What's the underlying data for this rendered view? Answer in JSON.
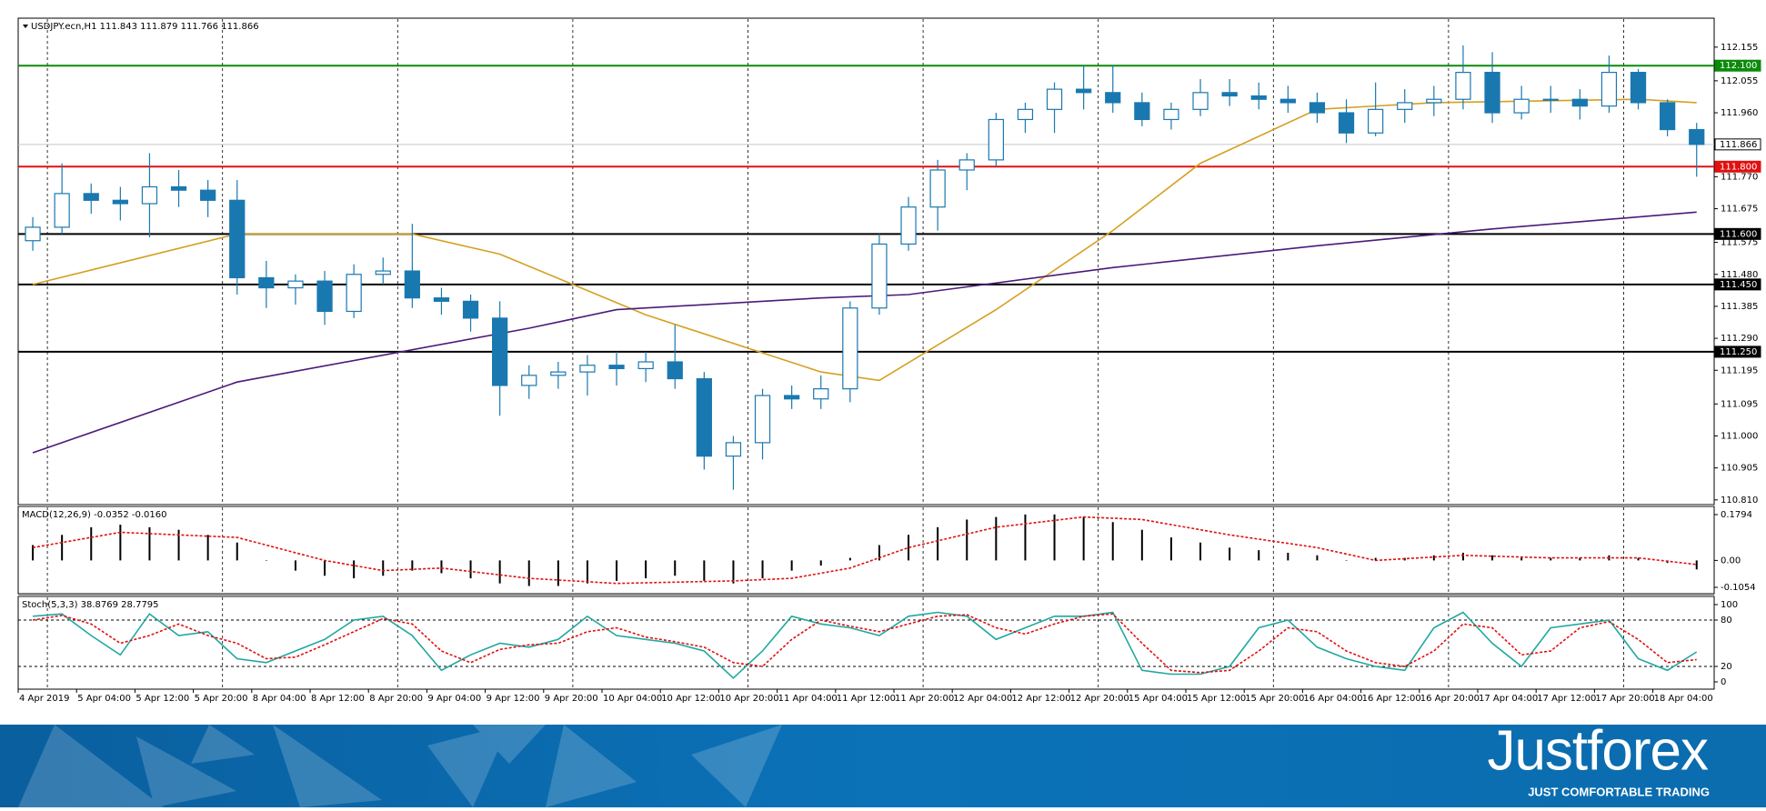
{
  "chart_data": [
    {
      "type": "candlestick",
      "title": "USDJPY.ecn,H1  111.843 111.879 111.766 111.866",
      "xlim": [
        -0.5,
        57.6
      ],
      "ylim": [
        110.796,
        112.241
      ],
      "xticks": [
        {
          "value": 0,
          "label": "4 Apr 2019"
        },
        {
          "value": 2,
          "label": "5 Apr 04:00"
        },
        {
          "value": 4,
          "label": "5 Apr 12:00"
        },
        {
          "value": 6,
          "label": "5 Apr 20:00"
        },
        {
          "value": 8,
          "label": "8 Apr 04:00"
        },
        {
          "value": 10,
          "label": "8 Apr 12:00"
        },
        {
          "value": 12,
          "label": "8 Apr 20:00"
        },
        {
          "value": 14,
          "label": "9 Apr 04:00"
        },
        {
          "value": 16,
          "label": "9 Apr 12:00"
        },
        {
          "value": 18,
          "label": "9 Apr 20:00"
        },
        {
          "value": 20,
          "label": "10 Apr 04:00"
        },
        {
          "value": 22,
          "label": "10 Apr 12:00"
        },
        {
          "value": 24,
          "label": "10 Apr 20:00"
        },
        {
          "value": 26,
          "label": "11 Apr 04:00"
        },
        {
          "value": 28,
          "label": "11 Apr 12:00"
        },
        {
          "value": 30,
          "label": "11 Apr 20:00"
        },
        {
          "value": 32,
          "label": "12 Apr 04:00"
        },
        {
          "value": 34,
          "label": "12 Apr 12:00"
        },
        {
          "value": 36,
          "label": "12 Apr 20:00"
        },
        {
          "value": 38,
          "label": "15 Apr 04:00"
        },
        {
          "value": 40,
          "label": "15 Apr 12:00"
        },
        {
          "value": 42,
          "label": "15 Apr 20:00"
        },
        {
          "value": 44,
          "label": "16 Apr 04:00"
        },
        {
          "value": 46,
          "label": "16 Apr 12:00"
        },
        {
          "value": 48,
          "label": "16 Apr 20:00"
        },
        {
          "value": 50,
          "label": "17 Apr 04:00"
        },
        {
          "value": 52,
          "label": "17 Apr 12:00"
        },
        {
          "value": 54,
          "label": "17 Apr 20:00"
        },
        {
          "value": 56,
          "label": "18 Apr 04:00"
        }
      ],
      "yticks": [
        112.155,
        112.055,
        {
          "value": 111.96,
          "label": "111.960"
        },
        {
          "value": 111.77,
          "label": "111.770"
        },
        111.675,
        111.575,
        {
          "value": 111.48,
          "label": "111.480"
        },
        111.385,
        {
          "value": 111.29,
          "label": "111.290"
        },
        111.195,
        111.095,
        {
          "value": 111,
          "label": "111.000"
        },
        110.905,
        {
          "value": 110.81,
          "label": "110.810"
        }
      ],
      "color": "#1a78b0",
      "bull_fill": "#ffffff",
      "open": [
        111.58,
        111.62,
        111.72,
        111.7,
        111.69,
        111.74,
        111.73,
        111.7,
        111.47,
        111.44,
        111.46,
        111.37,
        111.48,
        111.49,
        111.41,
        111.4,
        111.35,
        111.15,
        111.18,
        111.19,
        111.21,
        111.2,
        111.22,
        111.17,
        110.94,
        110.98,
        111.12,
        111.11,
        111.14,
        111.38,
        111.57,
        111.68,
        111.79,
        111.82,
        111.94,
        111.97,
        112.03,
        112.02,
        111.99,
        111.94,
        111.97,
        112.02,
        112.01,
        112.0,
        111.99,
        111.96,
        111.9,
        111.97,
        111.99,
        112.0,
        112.08,
        111.96,
        112.0,
        112.0,
        111.98,
        112.08,
        111.99,
        111.91
      ],
      "high": [
        111.65,
        111.81,
        111.75,
        111.74,
        111.84,
        111.79,
        111.76,
        111.76,
        111.52,
        111.48,
        111.49,
        111.51,
        111.53,
        111.63,
        111.44,
        111.42,
        111.4,
        111.21,
        111.22,
        111.24,
        111.25,
        111.25,
        111.33,
        111.19,
        111.0,
        111.14,
        111.15,
        111.18,
        111.4,
        111.6,
        111.71,
        111.82,
        111.84,
        111.96,
        111.99,
        112.05,
        112.1,
        112.1,
        112.02,
        111.99,
        112.06,
        112.06,
        112.05,
        112.04,
        112.02,
        112.0,
        112.05,
        112.03,
        112.04,
        112.16,
        112.14,
        112.04,
        112.04,
        112.03,
        112.13,
        112.09,
        112.0,
        111.93
      ],
      "low": [
        111.55,
        111.6,
        111.66,
        111.64,
        111.59,
        111.68,
        111.65,
        111.42,
        111.38,
        111.39,
        111.33,
        111.35,
        111.45,
        111.38,
        111.36,
        111.31,
        111.06,
        111.11,
        111.14,
        111.12,
        111.15,
        111.16,
        111.14,
        110.9,
        110.84,
        110.93,
        111.08,
        111.08,
        111.1,
        111.36,
        111.55,
        111.61,
        111.73,
        111.8,
        111.9,
        111.9,
        111.97,
        111.96,
        111.92,
        111.91,
        111.95,
        111.98,
        111.97,
        111.96,
        111.93,
        111.87,
        111.89,
        111.93,
        111.95,
        111.97,
        111.93,
        111.94,
        111.96,
        111.94,
        111.96,
        111.97,
        111.89,
        111.77
      ],
      "close": [
        111.62,
        111.72,
        111.7,
        111.69,
        111.74,
        111.73,
        111.7,
        111.47,
        111.44,
        111.46,
        111.37,
        111.48,
        111.49,
        111.41,
        111.4,
        111.35,
        111.15,
        111.18,
        111.19,
        111.21,
        111.2,
        111.22,
        111.17,
        110.94,
        110.98,
        111.12,
        111.11,
        111.14,
        111.38,
        111.57,
        111.68,
        111.79,
        111.82,
        111.94,
        111.97,
        112.03,
        112.02,
        111.99,
        111.94,
        111.97,
        112.02,
        112.01,
        112.0,
        111.99,
        111.96,
        111.9,
        111.97,
        111.99,
        112.0,
        112.08,
        111.96,
        112.0,
        112.0,
        111.98,
        112.08,
        111.99,
        111.91,
        111.866
      ],
      "overlays": [
        {
          "color": "#d4a020",
          "x": [
            0,
            7,
            13,
            16,
            21,
            27,
            29,
            33,
            37,
            40,
            44,
            48,
            55,
            57
          ],
          "values": [
            111.45,
            111.6,
            111.6,
            111.54,
            111.36,
            111.19,
            111.165,
            111.375,
            111.61,
            111.81,
            111.97,
            111.99,
            112.0,
            111.99
          ]
        },
        {
          "color": "#4b1a7a",
          "x": [
            0,
            7,
            17,
            20,
            27,
            30,
            37,
            44,
            50,
            57
          ],
          "values": [
            110.95,
            111.16,
            111.32,
            111.375,
            111.41,
            111.42,
            111.5,
            111.565,
            111.615,
            111.665
          ]
        }
      ],
      "levels": [
        {
          "value": 112.1,
          "label": "112.100",
          "color": "#0a8a0a",
          "label_bg": "#0a8a0a",
          "label_fg": "#ffffff"
        },
        {
          "value": 111.866,
          "label": "111.866",
          "color": "#c8c8c8",
          "label_bg": "#ffffff",
          "label_fg": "#000000"
        },
        {
          "value": 111.8,
          "label": "111.800",
          "color": "#e01010",
          "label_bg": "#e01010",
          "label_fg": "#ffffff"
        },
        {
          "value": 111.6,
          "label": "111.600",
          "color": "#000000",
          "label_bg": "#000000",
          "label_fg": "#ffffff"
        },
        {
          "value": 111.45,
          "label": "111.450",
          "color": "#000000",
          "label_bg": "#000000",
          "label_fg": "#ffffff"
        },
        {
          "value": 111.25,
          "label": "111.250",
          "color": "#000000",
          "label_bg": "#000000",
          "label_fg": "#ffffff"
        }
      ]
    },
    {
      "type": "macd",
      "title": "MACD(12,26,9) -0.0352 -0.0160",
      "xlim": [
        -0.5,
        57.6
      ],
      "ylim": [
        -0.1303,
        0.2114
      ],
      "yticks": [
        0.1794,
        {
          "value": 0,
          "label": "0.00"
        },
        -0.1054
      ],
      "color": "#000000",
      "values": [
        0.06,
        0.1,
        0.13,
        0.14,
        0.13,
        0.12,
        0.1,
        0.07,
        0,
        -0.04,
        -0.06,
        -0.07,
        -0.06,
        -0.04,
        -0.05,
        -0.07,
        -0.09,
        -0.1,
        -0.1,
        -0.09,
        -0.08,
        -0.07,
        -0.06,
        -0.08,
        -0.09,
        -0.07,
        -0.04,
        -0.02,
        0.01,
        0.06,
        0.1,
        0.13,
        0.16,
        0.17,
        0.18,
        0.18,
        0.17,
        0.15,
        0.12,
        0.09,
        0.07,
        0.05,
        0.04,
        0.03,
        0.02,
        0,
        0.01,
        0.01,
        0.02,
        0.03,
        0.02,
        0.01,
        0.01,
        0.01,
        0.02,
        0.01,
        -0.01,
        -0.0352
      ],
      "signal": {
        "color": "#e01010",
        "x": [
          0,
          3,
          7,
          10,
          12,
          14,
          17,
          20,
          24,
          26,
          28,
          30,
          33,
          36,
          38,
          41,
          44,
          46,
          49,
          52,
          55,
          57
        ],
        "values": [
          0.05,
          0.11,
          0.09,
          0,
          -0.04,
          -0.03,
          -0.07,
          -0.09,
          -0.08,
          -0.07,
          -0.03,
          0.05,
          0.13,
          0.17,
          0.16,
          0.1,
          0.05,
          0,
          0.02,
          0.01,
          0.01,
          -0.016
        ]
      }
    },
    {
      "type": "stochastic",
      "title": "Stoch(5,3,3) 38.8769 28.7795",
      "xlim": [
        -0.5,
        57.6
      ],
      "ylim": [
        -9.4,
        110.6
      ],
      "yticks": [
        100,
        80,
        20,
        0
      ],
      "levels": [
        80,
        20
      ],
      "series": [
        {
          "color": "#20a8a0",
          "values": [
            85,
            88,
            60,
            35,
            88,
            60,
            65,
            30,
            25,
            40,
            55,
            80,
            85,
            60,
            15,
            35,
            50,
            45,
            55,
            85,
            60,
            55,
            50,
            40,
            5,
            40,
            85,
            75,
            70,
            60,
            85,
            90,
            85,
            55,
            70,
            85,
            85,
            90,
            15,
            10,
            10,
            20,
            70,
            80,
            45,
            30,
            20,
            15,
            70,
            90,
            50,
            20,
            70,
            75,
            80,
            30,
            15,
            38.8769
          ]
        },
        {
          "color": "#e01010",
          "dashed": true,
          "values": [
            80,
            86,
            75,
            50,
            60,
            75,
            60,
            50,
            30,
            32,
            48,
            65,
            82,
            75,
            40,
            25,
            42,
            48,
            50,
            65,
            70,
            58,
            52,
            45,
            25,
            20,
            55,
            80,
            72,
            65,
            75,
            85,
            87,
            70,
            62,
            75,
            85,
            88,
            50,
            15,
            12,
            15,
            40,
            70,
            65,
            40,
            25,
            20,
            40,
            75,
            70,
            35,
            40,
            70,
            78,
            55,
            25,
            28.7795
          ]
        }
      ]
    }
  ],
  "branding": {
    "logo": "Justforex",
    "tagline": "JUST COMFORTABLE TRADING"
  }
}
